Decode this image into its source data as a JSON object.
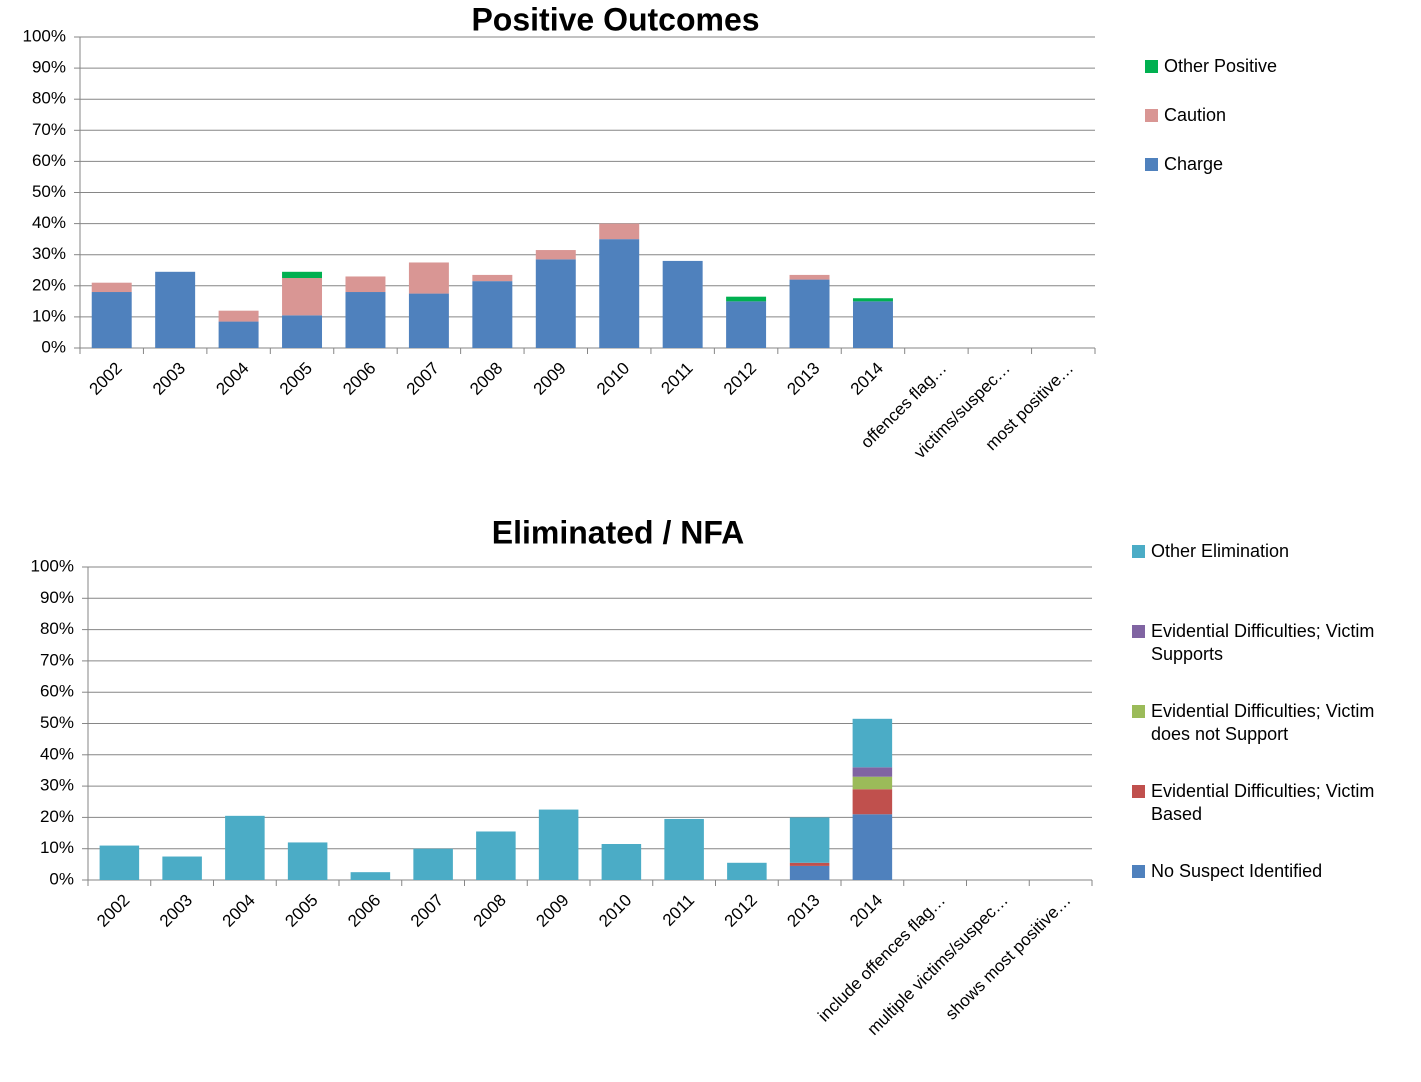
{
  "chart_data": [
    {
      "type": "bar",
      "stacked": true,
      "title": "Positive Outcomes",
      "categories": [
        "2002",
        "2003",
        "2004",
        "2005",
        "2006",
        "2007",
        "2008",
        "2009",
        "2010",
        "2011",
        "2012",
        "2013",
        "2014",
        "offences flag…",
        "victims/suspec…",
        "most positive…"
      ],
      "series": [
        {
          "name": "Charge",
          "color": "#4f81bd",
          "values": [
            18,
            24.5,
            8.5,
            10.5,
            18,
            17.5,
            21.5,
            28.5,
            35,
            28,
            15,
            22,
            15,
            null,
            null,
            null
          ]
        },
        {
          "name": "Caution",
          "color": "#d99694",
          "values": [
            3,
            0,
            3.5,
            12,
            5,
            10,
            2,
            3,
            5,
            0,
            0,
            1.5,
            0,
            null,
            null,
            null
          ]
        },
        {
          "name": "Other Positive",
          "color": "#00b050",
          "values": [
            0,
            0,
            0,
            2,
            0,
            0,
            0,
            0,
            0,
            0,
            1.5,
            0,
            1,
            null,
            null,
            null
          ]
        }
      ],
      "ylim": [
        0,
        100
      ],
      "yticks": [
        {
          "value": 0,
          "label": "0%"
        },
        {
          "value": 10,
          "label": "10%"
        },
        {
          "value": 20,
          "label": "20%"
        },
        {
          "value": 30,
          "label": "30%"
        },
        {
          "value": 40,
          "label": "40%"
        },
        {
          "value": 50,
          "label": "50%"
        },
        {
          "value": 60,
          "label": "60%"
        },
        {
          "value": 70,
          "label": "70%"
        },
        {
          "value": 80,
          "label": "80%"
        },
        {
          "value": 90,
          "label": "90%"
        },
        {
          "value": 100,
          "label": "100%"
        }
      ],
      "grid": true,
      "legend": "right"
    },
    {
      "type": "bar",
      "stacked": true,
      "title": "Eliminated / NFA",
      "categories": [
        "2002",
        "2003",
        "2004",
        "2005",
        "2006",
        "2007",
        "2008",
        "2009",
        "2010",
        "2011",
        "2012",
        "2013",
        "2014",
        "include offences flag…",
        "multiple victims/suspec…",
        "shows most positive…"
      ],
      "series": [
        {
          "name": "No Suspect Identified",
          "color": "#4f81bd",
          "values": [
            0,
            0,
            0,
            0,
            0,
            0,
            0,
            0,
            0,
            0,
            0,
            4.5,
            21,
            null,
            null,
            null
          ]
        },
        {
          "name": "Evidential Difficulties; Victim Based",
          "color": "#c0504d",
          "values": [
            0,
            0,
            0,
            0,
            0,
            0,
            0,
            0,
            0,
            0,
            0,
            1,
            8,
            null,
            null,
            null
          ]
        },
        {
          "name": "Evidential Difficulties; Victim does not Support",
          "color": "#9bbb59",
          "values": [
            0,
            0,
            0,
            0,
            0,
            0,
            0,
            0,
            0,
            0,
            0,
            0,
            4,
            null,
            null,
            null
          ]
        },
        {
          "name": "Evidential Difficulties; Victim Supports",
          "color": "#8064a2",
          "values": [
            0,
            0,
            0,
            0,
            0,
            0,
            0,
            0,
            0,
            0,
            0,
            0,
            3,
            null,
            null,
            null
          ]
        },
        {
          "name": "Other Elimination",
          "color": "#4bacc6",
          "values": [
            11,
            7.5,
            20.5,
            12,
            2.5,
            10,
            15.5,
            22.5,
            11.5,
            19.5,
            5.5,
            14.5,
            15.5,
            null,
            null,
            null
          ]
        }
      ],
      "ylim": [
        0,
        100
      ],
      "yticks": [
        {
          "value": 0,
          "label": "0%"
        },
        {
          "value": 10,
          "label": "10%"
        },
        {
          "value": 20,
          "label": "20%"
        },
        {
          "value": 30,
          "label": "30%"
        },
        {
          "value": 40,
          "label": "40%"
        },
        {
          "value": 50,
          "label": "50%"
        },
        {
          "value": 60,
          "label": "60%"
        },
        {
          "value": 70,
          "label": "70%"
        },
        {
          "value": 80,
          "label": "80%"
        },
        {
          "value": 90,
          "label": "90%"
        },
        {
          "value": 100,
          "label": "100%"
        }
      ],
      "grid": true,
      "legend": "right"
    }
  ]
}
